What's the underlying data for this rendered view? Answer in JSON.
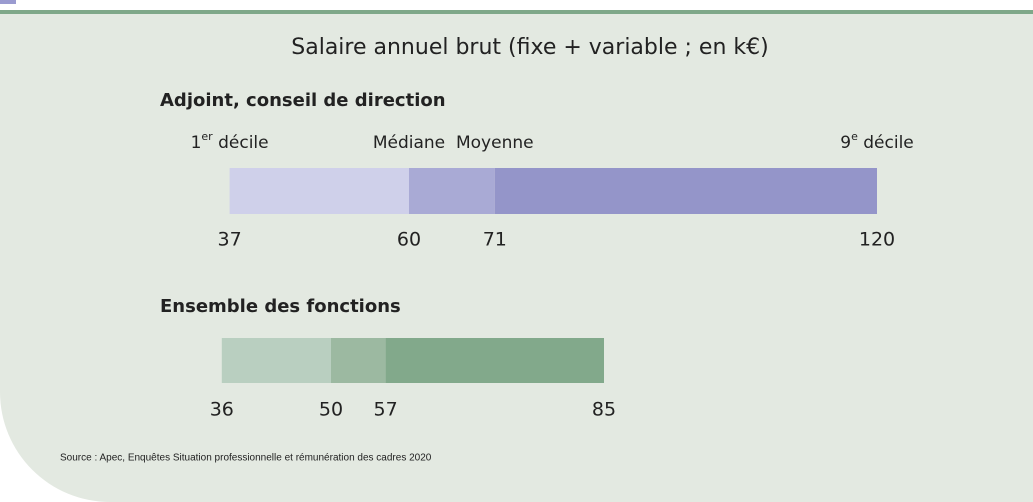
{
  "chart_data": {
    "type": "range-bar",
    "title": "Salaire annuel brut (fixe + variable ; en k€)",
    "labels": [
      [
        "1",
        "er",
        " décile"
      ],
      [
        "Médiane"
      ],
      [
        "Moyenne"
      ],
      [
        "9",
        "e",
        " décile"
      ]
    ],
    "groups": [
      {
        "name": "Adjoint, conseil de direction",
        "values": [
          37,
          60,
          71,
          120
        ],
        "colors": [
          "#cfd0ea",
          "#a9aad5",
          "#9495c9"
        ]
      },
      {
        "name": "Ensemble des fonctions",
        "values": [
          36,
          50,
          57,
          85
        ],
        "colors": [
          "#b9cfc0",
          "#9cb9a1",
          "#82a98b"
        ]
      }
    ],
    "source": "Source : Apec, Enquêtes Situation professionnelle et rémunération des cadres 2020"
  }
}
